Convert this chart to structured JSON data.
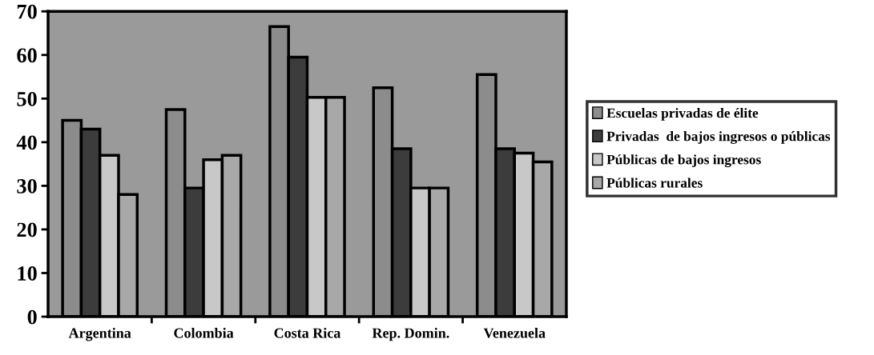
{
  "chart_data": {
    "type": "bar",
    "categories": [
      "Argentina",
      "Colombia",
      "Costa Rica",
      "Rep. Domin.",
      "Venezuela"
    ],
    "series": [
      {
        "name": "Escuelas privadas de élite",
        "color": "#8c8c8c",
        "values": [
          45,
          47.5,
          66.5,
          52.5,
          55.5
        ]
      },
      {
        "name": "Privadas  de bajos ingresos o públicas",
        "color": "#3c3c3c",
        "values": [
          43,
          29.5,
          59.5,
          38.5,
          38.5
        ]
      },
      {
        "name": "Públicas de bajos ingresos",
        "color": "#c8c8c8",
        "values": [
          37,
          36,
          50.3,
          29.5,
          37.5
        ]
      },
      {
        "name": "Públicas rurales",
        "color": "#a8a8a8",
        "values": [
          28,
          37,
          50.3,
          29.5,
          35.5
        ]
      }
    ],
    "ylim": [
      0,
      70
    ],
    "yticks": [
      0,
      10,
      20,
      30,
      40,
      50,
      60,
      70
    ],
    "grid": false,
    "legend": "right"
  }
}
